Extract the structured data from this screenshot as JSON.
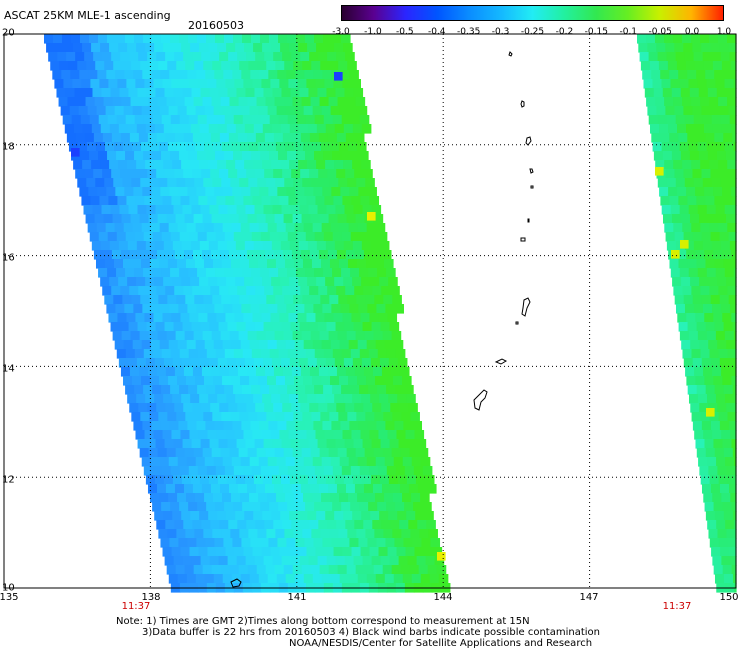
{
  "header": {
    "title": "ASCAT 25KM MLE-1 ascending",
    "date": "20160503"
  },
  "colorbar": {
    "labels": [
      "-3.0",
      "-1.0",
      "-0.5",
      "-0.4",
      "-0.35",
      "-0.3",
      "-0.25",
      "-0.2",
      "-0.15",
      "-0.1",
      "-0.05",
      "0.0",
      "1.0"
    ],
    "colors": [
      "#2a0030",
      "#5a0090",
      "#2b25ff",
      "#0055ff",
      "#0a8cff",
      "#14b8ff",
      "#22ecf4",
      "#22f0a0",
      "#32e850",
      "#66ee22",
      "#c8f000",
      "#ffb400",
      "#ff2000"
    ]
  },
  "axes": {
    "lat_labels": [
      "20",
      "18",
      "16",
      "14",
      "12",
      "10"
    ],
    "lon_labels": [
      "135",
      "138",
      "141",
      "144",
      "147",
      "150"
    ],
    "swath_times": [
      "11:37",
      "11:37"
    ]
  },
  "notes": {
    "line1": "Note: 1) Times are GMT 2)Times along bottom correspond to measurement at 15N",
    "line2": "3)Data buffer is 22 hrs from 20160503 4) Black wind barbs indicate possible contamination",
    "line3": "NOAA/NESDIS/Center for Satellite Applications and Research"
  },
  "map_data": {
    "lon_range": [
      135,
      150
    ],
    "lat_range": [
      10,
      20
    ],
    "grid_lon": [
      138,
      141,
      144,
      147
    ],
    "grid_lat": [
      12,
      14,
      16,
      18
    ],
    "swaths": [
      "west",
      "east"
    ],
    "features": [
      "Northern Mariana Islands",
      "Guam"
    ]
  }
}
